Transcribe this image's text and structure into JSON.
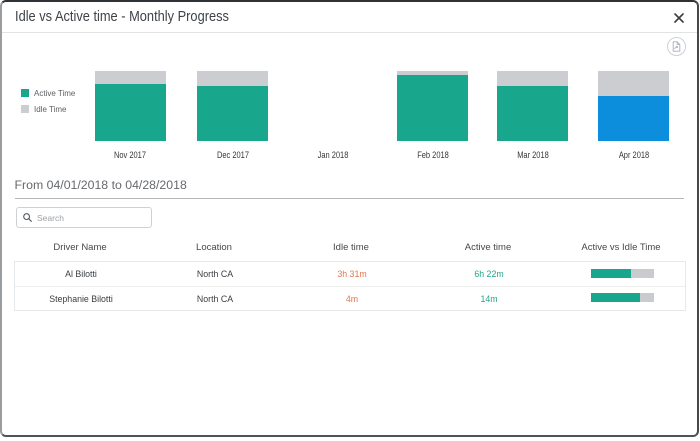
{
  "dialog": {
    "title": "Idle vs Active time - Monthly Progress"
  },
  "toolbar": {
    "close_icon": "close-x",
    "export_icon": "export-report-circle"
  },
  "chart_data": {
    "type": "bar",
    "stacked": true,
    "units": "percent share of month total (100% stacked)",
    "categories": [
      "Nov 2017",
      "Dec 2017",
      "Jan 2018",
      "Feb 2018",
      "Mar 2018",
      "Apr 2018"
    ],
    "series": [
      {
        "name": "Active Time",
        "color": "#18a78c",
        "values_pct": [
          82,
          79,
          null,
          94.5,
          79,
          64
        ]
      },
      {
        "name": "Idle Time",
        "color": "#cbcdd0",
        "values_pct": [
          18,
          21,
          null,
          5.5,
          21,
          36
        ]
      }
    ],
    "highlight": {
      "category": "Apr 2018",
      "series": "Active Time",
      "color": "#0c8edc"
    },
    "legend_position": "left",
    "grid": false
  },
  "period": {
    "label": "From 04/01/2018 to 04/28/2018"
  },
  "search": {
    "placeholder": "Search",
    "icon": "search-magnifier"
  },
  "table": {
    "columns": [
      "Driver Name",
      "Location",
      "Idle time",
      "Active time",
      "Active vs Idle Time"
    ],
    "rows": [
      {
        "driver": "Al Bilotti",
        "location": "North CA",
        "idle": "3h 31m",
        "active": "6h 22m",
        "active_share_pct": 64.4
      },
      {
        "driver": "Stephanie Bilotti",
        "location": "North CA",
        "idle": "4m",
        "active": "14m",
        "active_share_pct": 77.8
      }
    ]
  },
  "colors": {
    "active_bar": "#18a78c",
    "idle_bar": "#cbcdd0",
    "selected_month_bar": "#0c8edc",
    "idle_text": "#e3764f",
    "active_text": "#23a38d"
  }
}
